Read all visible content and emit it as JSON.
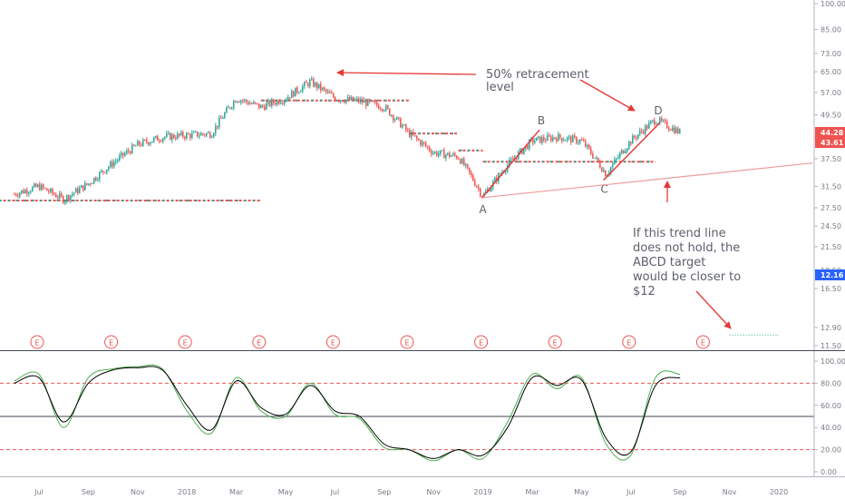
{
  "chart_data": {
    "type": "line",
    "price_axis": {
      "scale": "log",
      "ticks": [
        "100.00",
        "85.00",
        "73.00",
        "65.00",
        "57.00",
        "49.50",
        "43.00",
        "37.50",
        "31.50",
        "27.50",
        "24.50",
        "21.50",
        "18.50",
        "16.50",
        "12.90",
        "11.50"
      ],
      "badges": [
        {
          "value": "44.28",
          "color": "#ef5350"
        },
        {
          "value": "43.61",
          "color": "#ef5350"
        },
        {
          "value": "12.16",
          "color": "#2962ff"
        }
      ]
    },
    "time_axis": {
      "ticks": [
        "Jul",
        "Sep",
        "Nov",
        "2018",
        "Mar",
        "May",
        "Jul",
        "Sep",
        "Nov",
        "2019",
        "Mar",
        "May",
        "Jul",
        "Sep",
        "Nov",
        "2020"
      ]
    },
    "price_series": {
      "name": "",
      "up_color": "#26a69a",
      "down_color": "#ef5350",
      "points": [
        [
          "2017-06",
          30.0
        ],
        [
          "2017-07",
          31.5
        ],
        [
          "2017-08",
          29.0
        ],
        [
          "2017-09",
          32.0
        ],
        [
          "2017-10",
          36.5
        ],
        [
          "2017-11",
          41.0
        ],
        [
          "2017-12",
          43.0
        ],
        [
          "2018-01",
          43.5
        ],
        [
          "2018-02",
          44.0
        ],
        [
          "2018-03",
          55.0
        ],
        [
          "2018-04",
          52.0
        ],
        [
          "2018-05",
          55.0
        ],
        [
          "2018-06",
          61.0
        ],
        [
          "2018-07",
          55.0
        ],
        [
          "2018-08",
          54.0
        ],
        [
          "2018-09",
          52.0
        ],
        [
          "2018-10",
          44.0
        ],
        [
          "2018-11",
          39.0
        ],
        [
          "2018-12",
          38.0
        ],
        [
          "2019-01",
          29.5
        ],
        [
          "2019-02",
          36.0
        ],
        [
          "2019-03",
          42.0
        ],
        [
          "2019-04",
          43.0
        ],
        [
          "2019-05",
          42.0
        ],
        [
          "2019-06",
          34.0
        ],
        [
          "2019-07",
          42.0
        ],
        [
          "2019-08",
          48.0
        ],
        [
          "2019-09",
          44.3
        ]
      ]
    },
    "horizontal_levels": [
      {
        "value": 28.8,
        "x_start": "2017-05",
        "x_end": "2018-04"
      },
      {
        "value": 54.2,
        "x_start": "2018-04",
        "x_end": "2018-10"
      },
      {
        "value": 44.0,
        "x_start": "2018-10",
        "x_end": "2018-12"
      },
      {
        "value": 39.5,
        "x_start": "2018-12",
        "x_end": "2019-01"
      },
      {
        "value": 36.8,
        "x_start": "2019-01",
        "x_end": "2019-08"
      },
      {
        "value": 12.3,
        "x_start": "2019-11",
        "x_end": "2020-01"
      }
    ],
    "abcd_pattern": [
      {
        "label": "A",
        "x": "2019-01",
        "y": 29.5
      },
      {
        "label": "B",
        "x": "2019-03",
        "y": 45.0
      },
      {
        "label": "C",
        "x": "2019-06",
        "y": 33.5
      },
      {
        "label": "D",
        "x": "2019-08",
        "y": 48.5
      }
    ],
    "trend_line": {
      "start": {
        "x": "2019-01",
        "y": 29.5
      },
      "end": {
        "x": "2020-02",
        "y": 36.5
      }
    },
    "annotations": [
      {
        "text_lines": [
          "50% retracement",
          "level"
        ]
      },
      {
        "text_lines": [
          "If this trend line",
          "does not hold, the",
          "ABCD target",
          "would be closer to",
          "$12"
        ]
      }
    ],
    "earnings_markers": {
      "symbol": "E",
      "dates": [
        "2017-07",
        "2017-10",
        "2018-01",
        "2018-04",
        "2018-07",
        "2018-10",
        "2019-01",
        "2019-04",
        "2019-07",
        "2019-10"
      ]
    },
    "oscillator": {
      "ticks": [
        "100.00",
        "80.00",
        "60.00",
        "40.00",
        "20.00",
        "0.00"
      ],
      "overbought": 80,
      "oversold": 20,
      "midline": 50,
      "k_color": "#4caf50",
      "d_color": "#000000",
      "k_points": [
        [
          "2017-06",
          82
        ],
        [
          "2017-07",
          88
        ],
        [
          "2017-08",
          40
        ],
        [
          "2017-09",
          85
        ],
        [
          "2017-10",
          93
        ],
        [
          "2017-11",
          95
        ],
        [
          "2017-12",
          93
        ],
        [
          "2018-01",
          55
        ],
        [
          "2018-02",
          35
        ],
        [
          "2018-03",
          85
        ],
        [
          "2018-04",
          55
        ],
        [
          "2018-05",
          50
        ],
        [
          "2018-06",
          80
        ],
        [
          "2018-07",
          52
        ],
        [
          "2018-08",
          48
        ],
        [
          "2018-09",
          22
        ],
        [
          "2018-10",
          20
        ],
        [
          "2018-11",
          10
        ],
        [
          "2018-12",
          20
        ],
        [
          "2019-01",
          12
        ],
        [
          "2019-02",
          45
        ],
        [
          "2019-03",
          88
        ],
        [
          "2019-04",
          75
        ],
        [
          "2019-05",
          85
        ],
        [
          "2019-06",
          25
        ],
        [
          "2019-07",
          15
        ],
        [
          "2019-08",
          85
        ],
        [
          "2019-09",
          88
        ]
      ],
      "d_points": [
        [
          "2017-06",
          80
        ],
        [
          "2017-07",
          85
        ],
        [
          "2017-08",
          45
        ],
        [
          "2017-09",
          80
        ],
        [
          "2017-10",
          92
        ],
        [
          "2017-11",
          94
        ],
        [
          "2017-12",
          92
        ],
        [
          "2018-01",
          60
        ],
        [
          "2018-02",
          38
        ],
        [
          "2018-03",
          82
        ],
        [
          "2018-04",
          58
        ],
        [
          "2018-05",
          52
        ],
        [
          "2018-06",
          78
        ],
        [
          "2018-07",
          55
        ],
        [
          "2018-08",
          50
        ],
        [
          "2018-09",
          25
        ],
        [
          "2018-10",
          20
        ],
        [
          "2018-11",
          12
        ],
        [
          "2018-12",
          20
        ],
        [
          "2019-01",
          15
        ],
        [
          "2019-02",
          40
        ],
        [
          "2019-03",
          85
        ],
        [
          "2019-04",
          78
        ],
        [
          "2019-05",
          83
        ],
        [
          "2019-06",
          30
        ],
        [
          "2019-07",
          18
        ],
        [
          "2019-08",
          78
        ],
        [
          "2019-09",
          85
        ]
      ]
    }
  }
}
